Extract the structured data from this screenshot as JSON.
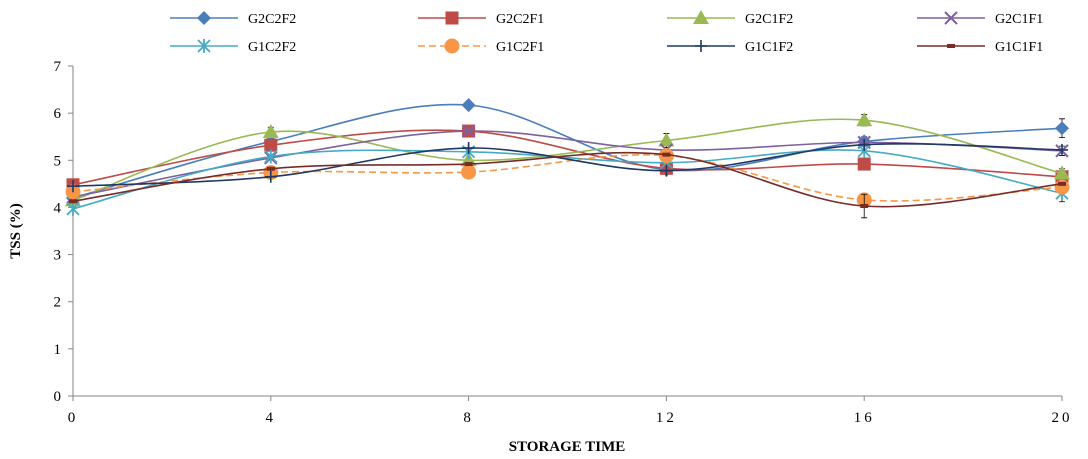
{
  "chart_data": {
    "type": "line",
    "xlabel": "STORAGE TIME",
    "ylabel": "TSS (%)",
    "x": [
      0,
      4,
      8,
      12,
      16,
      20
    ],
    "x_tick_labels": [
      "0",
      "4",
      "8",
      "12",
      "16",
      "20"
    ],
    "ylim": [
      0,
      7
    ],
    "y_ticks": [
      0,
      1,
      2,
      3,
      4,
      5,
      6,
      7
    ],
    "smoothed": true,
    "grid": false,
    "legend_position": "top",
    "series": [
      {
        "name": "G2C2F2",
        "color": "#4a7ebb",
        "marker": "diamond",
        "dashed": false,
        "values": [
          4.2,
          5.4,
          6.17,
          4.8,
          5.4,
          5.68
        ],
        "errors": [
          0,
          0,
          0,
          0,
          0.1,
          0.2
        ]
      },
      {
        "name": "G2C2F1",
        "color": "#be4b48",
        "marker": "square",
        "dashed": false,
        "values": [
          4.48,
          5.32,
          5.62,
          4.83,
          4.92,
          4.65
        ],
        "errors": [
          0,
          0,
          0.1,
          0,
          0.1,
          0
        ]
      },
      {
        "name": "G2C1F2",
        "color": "#98b954",
        "marker": "triangle",
        "dashed": false,
        "values": [
          4.15,
          5.6,
          5.0,
          5.42,
          5.85,
          4.72
        ],
        "errors": [
          0,
          0.1,
          0,
          0.15,
          0.12,
          0.1
        ]
      },
      {
        "name": "G2C1F1",
        "color": "#7d60a0",
        "marker": "x",
        "dashed": false,
        "values": [
          4.22,
          5.05,
          5.62,
          5.22,
          5.38,
          5.2
        ],
        "errors": [
          0,
          0,
          0,
          0,
          0,
          0.1
        ]
      },
      {
        "name": "G1C2F2",
        "color": "#46aac5",
        "marker": "asterisk",
        "dashed": false,
        "values": [
          3.97,
          5.08,
          5.18,
          4.95,
          5.2,
          4.3
        ],
        "errors": [
          0,
          0,
          0,
          0,
          0,
          0.18
        ]
      },
      {
        "name": "G1C2F1",
        "color": "#f79646",
        "marker": "circle",
        "dashed": true,
        "values": [
          4.33,
          4.74,
          4.75,
          5.1,
          4.16,
          4.43
        ],
        "errors": [
          0,
          0,
          0,
          0,
          0.1,
          0
        ]
      },
      {
        "name": "G1C1F2",
        "color": "#1f3864",
        "marker": "plus",
        "dashed": false,
        "values": [
          4.45,
          4.65,
          5.26,
          4.78,
          5.33,
          5.22
        ],
        "errors": [
          0,
          0,
          0,
          0,
          0,
          0
        ]
      },
      {
        "name": "G1C1F1",
        "color": "#772c2a",
        "marker": "dash",
        "dashed": false,
        "values": [
          4.13,
          4.82,
          4.92,
          5.12,
          4.03,
          4.5
        ],
        "errors": [
          0,
          0,
          0,
          0,
          0.25,
          0
        ]
      }
    ]
  }
}
